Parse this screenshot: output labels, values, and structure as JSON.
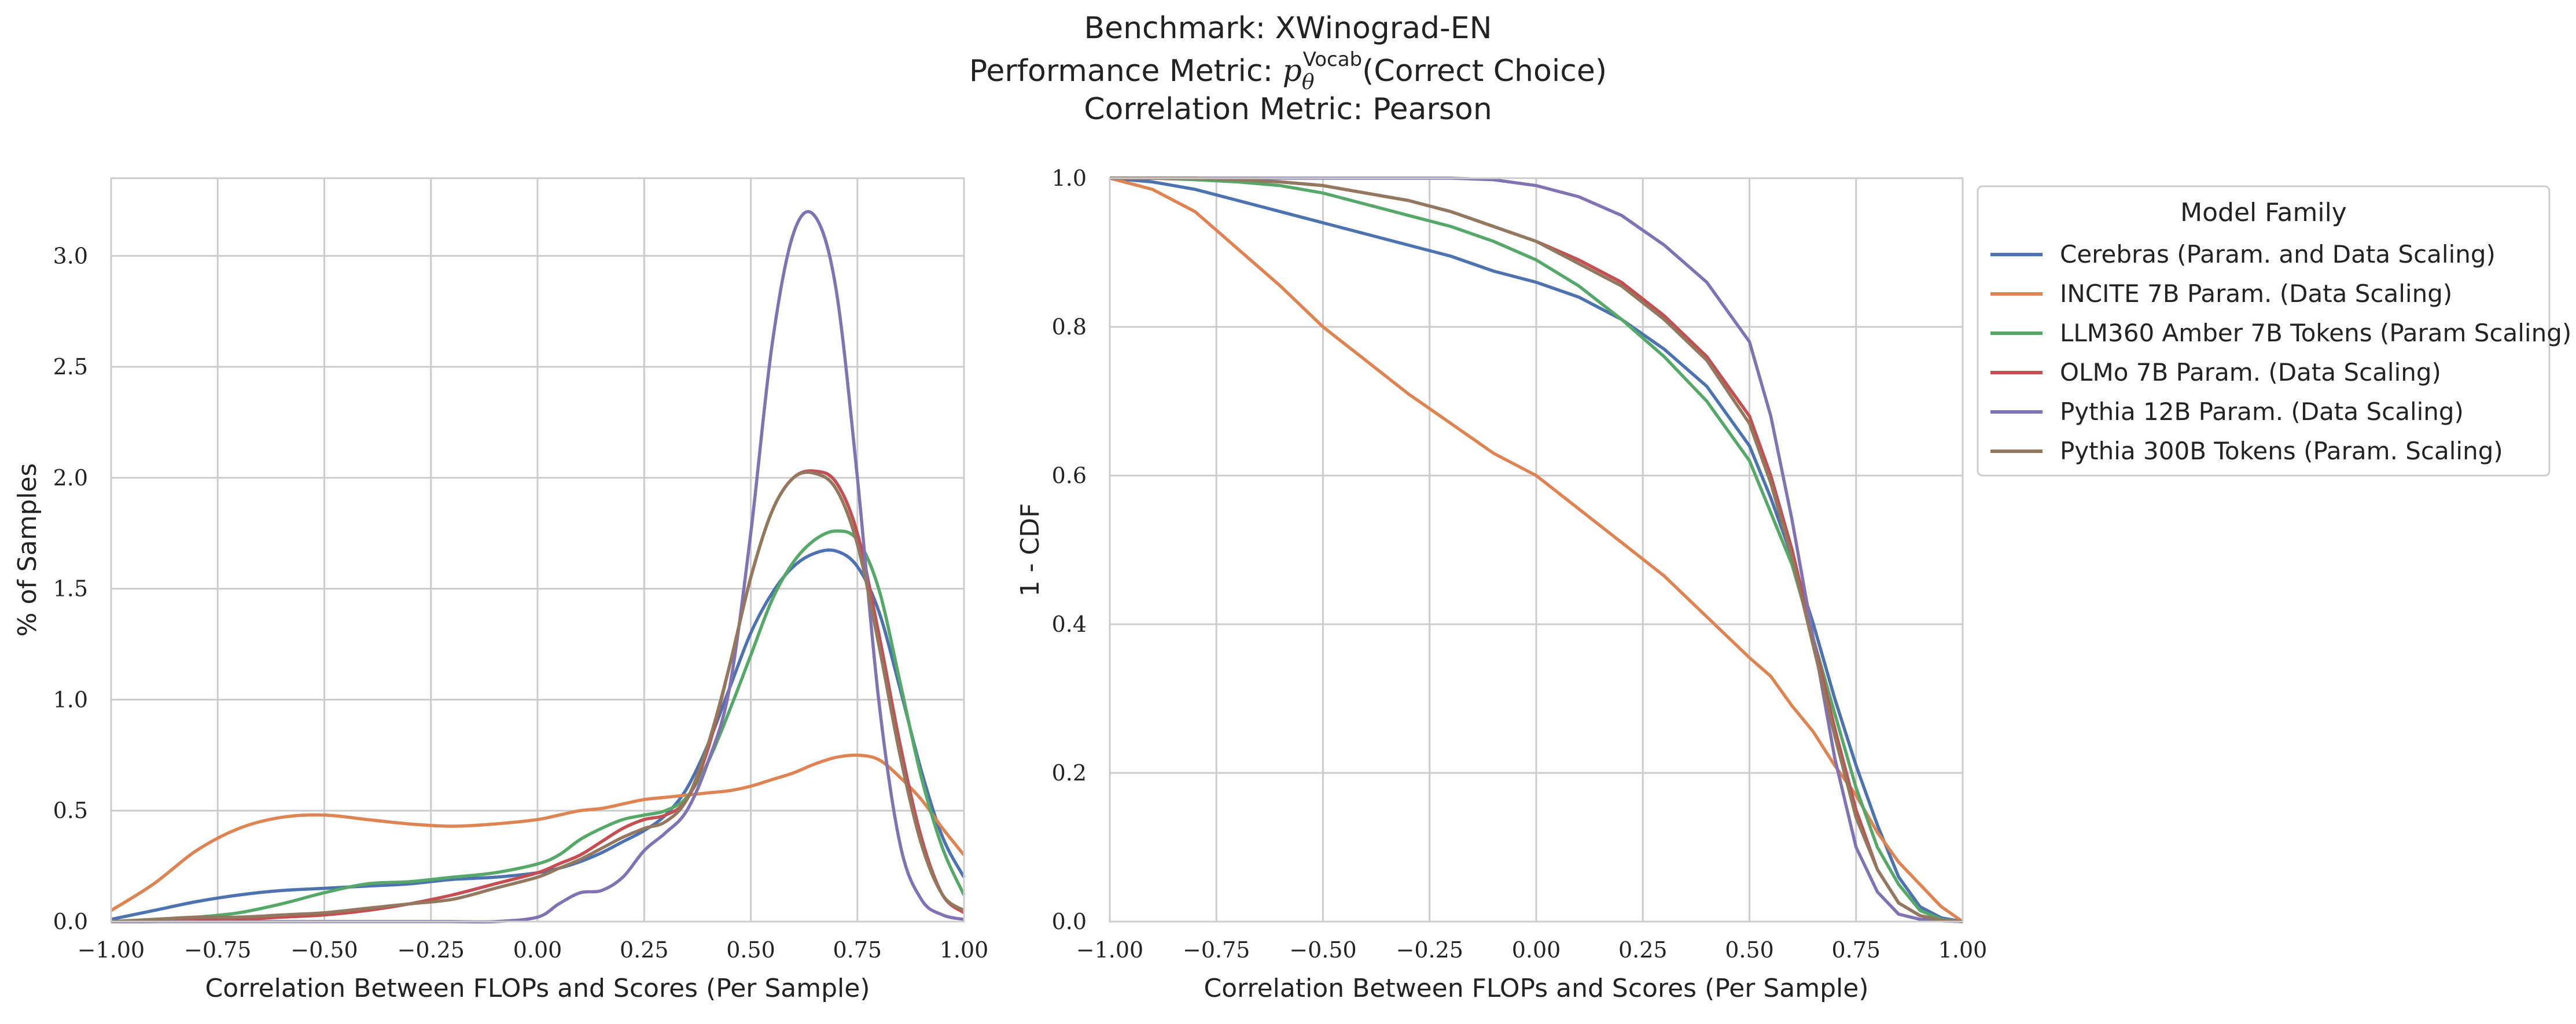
{
  "figure": {
    "title_benchmark": "Benchmark: XWinograd-EN",
    "title_metric_prefix": "Performance Metric: ",
    "title_metric_symbol": "p",
    "title_metric_sub": "θ",
    "title_metric_sup": "Vocab",
    "title_metric_suffix": "(Correct Choice)",
    "title_correlation": "Correlation Metric: Pearson"
  },
  "legend": {
    "title": "Model Family",
    "entries": [
      {
        "label": "Cerebras (Param. and Data Scaling)",
        "color": "#4c72b0"
      },
      {
        "label": "INCITE 7B Param. (Data Scaling)",
        "color": "#dd8452"
      },
      {
        "label": "LLM360 Amber 7B Tokens (Param Scaling)",
        "color": "#55a868"
      },
      {
        "label": "OLMo 7B Param. (Data Scaling)",
        "color": "#c44e52"
      },
      {
        "label": "Pythia 12B Param. (Data Scaling)",
        "color": "#8172b3"
      },
      {
        "label": "Pythia 300B Tokens (Param. Scaling)",
        "color": "#937860"
      }
    ]
  },
  "chart_data": [
    {
      "type": "line",
      "xlabel": "Correlation Between FLOPs and Scores (Per Sample)",
      "ylabel": "% of Samples",
      "xlim": [
        -1.0,
        1.0
      ],
      "ylim": [
        0,
        3.35
      ],
      "xticks": [
        -1.0,
        -0.75,
        -0.5,
        -0.25,
        0.0,
        0.25,
        0.5,
        0.75,
        1.0
      ],
      "xtick_labels": [
        "−1.00",
        "−0.75",
        "−0.50",
        "−0.25",
        "0.00",
        "0.25",
        "0.50",
        "0.75",
        "1.00"
      ],
      "yticks": [
        0,
        0.5,
        1.0,
        1.5,
        2.0,
        2.5,
        3.0
      ],
      "ytick_labels": [
        "0.0",
        "0.5",
        "1.0",
        "1.5",
        "2.0",
        "2.5",
        "3.0"
      ],
      "grid": true,
      "x": [
        -1.0,
        -0.9,
        -0.8,
        -0.7,
        -0.6,
        -0.5,
        -0.4,
        -0.3,
        -0.2,
        -0.1,
        0.0,
        0.05,
        0.1,
        0.15,
        0.2,
        0.25,
        0.3,
        0.35,
        0.4,
        0.45,
        0.5,
        0.55,
        0.6,
        0.65,
        0.7,
        0.75,
        0.8,
        0.85,
        0.9,
        0.95,
        1.0
      ],
      "series": [
        {
          "name": "Cerebras (Param. and Data Scaling)",
          "color": "#4c72b0",
          "values": [
            0.01,
            0.05,
            0.09,
            0.12,
            0.14,
            0.15,
            0.16,
            0.17,
            0.19,
            0.2,
            0.22,
            0.24,
            0.27,
            0.31,
            0.36,
            0.41,
            0.48,
            0.6,
            0.8,
            1.05,
            1.3,
            1.48,
            1.6,
            1.66,
            1.67,
            1.6,
            1.4,
            1.05,
            0.68,
            0.38,
            0.2
          ]
        },
        {
          "name": "INCITE 7B Param. (Data Scaling)",
          "color": "#dd8452",
          "values": [
            0.05,
            0.17,
            0.32,
            0.42,
            0.47,
            0.48,
            0.46,
            0.44,
            0.43,
            0.44,
            0.46,
            0.48,
            0.5,
            0.51,
            0.53,
            0.55,
            0.56,
            0.57,
            0.58,
            0.59,
            0.61,
            0.64,
            0.67,
            0.71,
            0.74,
            0.75,
            0.73,
            0.65,
            0.55,
            0.42,
            0.3
          ]
        },
        {
          "name": "LLM360 Amber 7B Tokens (Param Scaling)",
          "color": "#55a868",
          "values": [
            0.0,
            0.01,
            0.02,
            0.04,
            0.08,
            0.13,
            0.17,
            0.18,
            0.2,
            0.22,
            0.26,
            0.3,
            0.37,
            0.42,
            0.46,
            0.48,
            0.5,
            0.56,
            0.72,
            0.95,
            1.2,
            1.45,
            1.62,
            1.72,
            1.76,
            1.72,
            1.5,
            1.08,
            0.65,
            0.33,
            0.12
          ]
        },
        {
          "name": "OLMo 7B Param. (Data Scaling)",
          "color": "#c44e52",
          "values": [
            0.0,
            0.0,
            0.01,
            0.01,
            0.02,
            0.03,
            0.05,
            0.08,
            0.12,
            0.17,
            0.22,
            0.26,
            0.3,
            0.36,
            0.42,
            0.46,
            0.48,
            0.55,
            0.78,
            1.15,
            1.55,
            1.85,
            2.0,
            2.03,
            1.98,
            1.75,
            1.3,
            0.8,
            0.38,
            0.12,
            0.04
          ]
        },
        {
          "name": "Pythia 12B Param. (Data Scaling)",
          "color": "#8172b3",
          "values": [
            0.0,
            0.0,
            0.0,
            0.0,
            0.0,
            0.0,
            0.0,
            0.0,
            0.0,
            0.0,
            0.02,
            0.08,
            0.13,
            0.14,
            0.2,
            0.32,
            0.4,
            0.5,
            0.72,
            1.05,
            1.75,
            2.6,
            3.1,
            3.18,
            2.85,
            2.0,
            1.0,
            0.35,
            0.1,
            0.03,
            0.01
          ]
        },
        {
          "name": "Pythia 300B Tokens (Param. Scaling)",
          "color": "#937860",
          "values": [
            0.0,
            0.01,
            0.02,
            0.02,
            0.03,
            0.04,
            0.06,
            0.08,
            0.1,
            0.15,
            0.2,
            0.24,
            0.28,
            0.33,
            0.38,
            0.42,
            0.45,
            0.55,
            0.8,
            1.15,
            1.55,
            1.85,
            2.0,
            2.02,
            1.95,
            1.7,
            1.25,
            0.75,
            0.35,
            0.12,
            0.05
          ]
        }
      ]
    },
    {
      "type": "line",
      "xlabel": "Correlation Between FLOPs and Scores (Per Sample)",
      "ylabel": "1 - CDF",
      "xlim": [
        -1.0,
        1.0
      ],
      "ylim": [
        0,
        1.0
      ],
      "xticks": [
        -1.0,
        -0.75,
        -0.5,
        -0.25,
        0.0,
        0.25,
        0.5,
        0.75,
        1.0
      ],
      "xtick_labels": [
        "−1.00",
        "−0.75",
        "−0.50",
        "−0.25",
        "0.00",
        "0.25",
        "0.50",
        "0.75",
        "1.00"
      ],
      "yticks": [
        0,
        0.2,
        0.4,
        0.6,
        0.8,
        1.0
      ],
      "ytick_labels": [
        "0.0",
        "0.2",
        "0.4",
        "0.6",
        "0.8",
        "1.0"
      ],
      "grid": true,
      "x": [
        -1.0,
        -0.9,
        -0.8,
        -0.7,
        -0.6,
        -0.5,
        -0.4,
        -0.3,
        -0.2,
        -0.1,
        0.0,
        0.1,
        0.2,
        0.3,
        0.4,
        0.5,
        0.55,
        0.6,
        0.65,
        0.7,
        0.75,
        0.8,
        0.85,
        0.9,
        0.95,
        1.0
      ],
      "series": [
        {
          "name": "Cerebras (Param. and Data Scaling)",
          "color": "#4c72b0",
          "values": [
            1.0,
            0.995,
            0.985,
            0.97,
            0.955,
            0.94,
            0.925,
            0.91,
            0.895,
            0.875,
            0.86,
            0.84,
            0.81,
            0.77,
            0.72,
            0.64,
            0.57,
            0.49,
            0.4,
            0.3,
            0.21,
            0.13,
            0.06,
            0.02,
            0.005,
            0.0
          ]
        },
        {
          "name": "INCITE 7B Param. (Data Scaling)",
          "color": "#dd8452",
          "values": [
            1.0,
            0.985,
            0.955,
            0.905,
            0.855,
            0.8,
            0.755,
            0.71,
            0.67,
            0.63,
            0.6,
            0.555,
            0.51,
            0.465,
            0.41,
            0.355,
            0.33,
            0.29,
            0.255,
            0.21,
            0.17,
            0.12,
            0.08,
            0.05,
            0.02,
            0.0
          ]
        },
        {
          "name": "LLM360 Amber 7B Tokens (Param Scaling)",
          "color": "#55a868",
          "values": [
            1.0,
            1.0,
            0.998,
            0.995,
            0.99,
            0.98,
            0.965,
            0.95,
            0.935,
            0.915,
            0.89,
            0.855,
            0.81,
            0.76,
            0.7,
            0.62,
            0.55,
            0.48,
            0.38,
            0.28,
            0.18,
            0.1,
            0.05,
            0.015,
            0.003,
            0.0
          ]
        },
        {
          "name": "OLMo 7B Param. (Data Scaling)",
          "color": "#c44e52",
          "values": [
            1.0,
            1.0,
            1.0,
            0.998,
            0.995,
            0.99,
            0.98,
            0.97,
            0.955,
            0.935,
            0.915,
            0.89,
            0.86,
            0.815,
            0.76,
            0.68,
            0.6,
            0.5,
            0.38,
            0.26,
            0.15,
            0.07,
            0.025,
            0.008,
            0.002,
            0.0
          ]
        },
        {
          "name": "Pythia 12B Param. (Data Scaling)",
          "color": "#8172b3",
          "values": [
            1.0,
            1.0,
            1.0,
            1.0,
            1.0,
            1.0,
            1.0,
            1.0,
            1.0,
            0.998,
            0.99,
            0.975,
            0.95,
            0.91,
            0.86,
            0.78,
            0.68,
            0.54,
            0.38,
            0.22,
            0.1,
            0.04,
            0.01,
            0.003,
            0.001,
            0.0
          ]
        },
        {
          "name": "Pythia 300B Tokens (Param. Scaling)",
          "color": "#937860",
          "values": [
            1.0,
            1.0,
            1.0,
            0.998,
            0.995,
            0.99,
            0.98,
            0.97,
            0.955,
            0.935,
            0.915,
            0.885,
            0.855,
            0.81,
            0.755,
            0.67,
            0.59,
            0.49,
            0.37,
            0.25,
            0.14,
            0.07,
            0.025,
            0.008,
            0.002,
            0.0
          ]
        }
      ]
    }
  ]
}
